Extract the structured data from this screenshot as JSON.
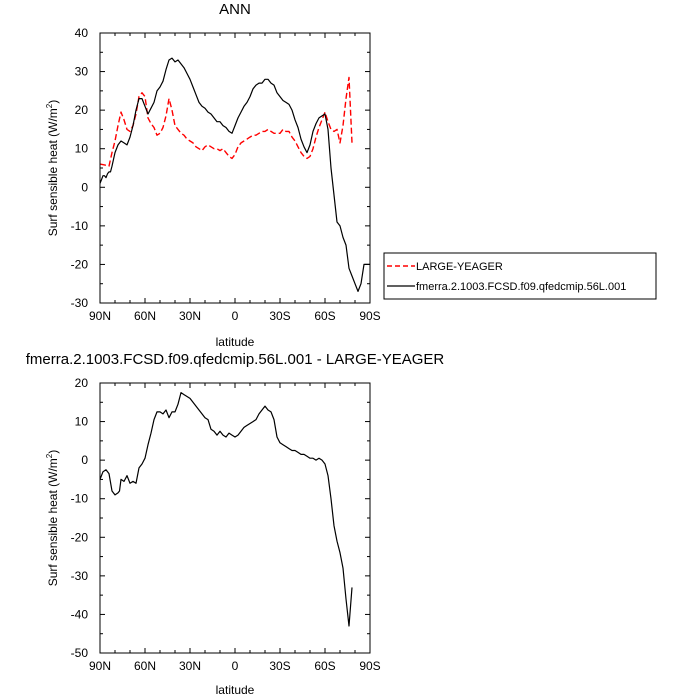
{
  "chart_data": [
    {
      "type": "line",
      "title": "ANN",
      "xlabel": "latitude",
      "ylabel": "Surf sensible heat (W/m²)",
      "ylabel_main": "Surf sensible heat (W/m",
      "ylabel_sup": "2",
      "ylabel_close": ")",
      "xlim": [
        90,
        -90
      ],
      "ylim": [
        -30,
        40
      ],
      "xticks": [
        90,
        60,
        30,
        0,
        -30,
        -60,
        -90
      ],
      "xticklabels": [
        "90N",
        "60N",
        "30N",
        "0",
        "30S",
        "60S",
        "90S"
      ],
      "yticks": [
        -30,
        -20,
        -10,
        0,
        10,
        20,
        30,
        40
      ],
      "yticklabels": [
        "-30",
        "-20",
        "-10",
        "0",
        "10",
        "20",
        "30",
        "40"
      ],
      "legend_position": "right",
      "series": [
        {
          "name": "LARGE-YEAGER",
          "color": "#ff0000",
          "style": "dashed",
          "x": [
            90,
            87,
            84,
            82,
            80,
            78,
            76,
            74,
            72,
            70,
            68,
            66,
            64,
            62,
            60,
            58,
            56,
            54,
            52,
            50,
            48,
            46,
            44,
            42,
            40,
            38,
            36,
            34,
            32,
            30,
            28,
            26,
            24,
            22,
            20,
            18,
            16,
            14,
            12,
            10,
            8,
            6,
            4,
            2,
            0,
            -2,
            -4,
            -6,
            -8,
            -10,
            -12,
            -14,
            -16,
            -18,
            -20,
            -22,
            -24,
            -26,
            -28,
            -30,
            -32,
            -34,
            -36,
            -38,
            -40,
            -42,
            -44,
            -46,
            -48,
            -50,
            -52,
            -54,
            -56,
            -58,
            -60,
            -62,
            -64,
            -66,
            -68,
            -70,
            -72,
            -74,
            -76,
            -78
          ],
          "y": [
            6,
            5.8,
            5.5,
            9,
            12,
            16,
            19.5,
            17.5,
            15,
            14.5,
            16,
            19,
            23.5,
            24.5,
            23.5,
            18,
            16.5,
            15.5,
            13.5,
            14,
            15.5,
            18.5,
            23,
            20,
            16,
            15,
            14,
            13.5,
            12.5,
            12,
            11.5,
            10.5,
            10,
            9.5,
            10.5,
            11,
            10.5,
            10,
            10,
            9.5,
            10,
            9,
            8,
            7.5,
            8.5,
            10.5,
            11.5,
            12,
            12.5,
            13,
            13.5,
            13.5,
            14,
            14.5,
            14.5,
            15,
            14.5,
            14,
            14,
            14,
            15,
            14.5,
            14.5,
            13,
            12,
            10.5,
            9,
            8,
            7.5,
            8,
            10,
            13,
            15.5,
            17.5,
            19.5,
            17,
            15,
            14.5,
            15,
            11.5,
            16,
            23,
            28.5,
            11.5
          ]
        },
        {
          "name": "fmerra.2.1003.FCSD.f09.qfedcmip.56L.001",
          "color": "#000000",
          "style": "solid",
          "x": [
            90,
            89,
            88,
            87,
            86,
            85,
            84,
            83,
            82,
            80,
            78,
            76,
            74,
            72,
            70,
            68,
            66,
            64,
            62,
            60,
            58,
            56,
            54,
            52,
            50,
            48,
            46,
            44,
            42,
            40,
            38,
            36,
            34,
            32,
            30,
            28,
            26,
            24,
            22,
            20,
            18,
            16,
            14,
            12,
            10,
            8,
            6,
            4,
            2,
            0,
            -2,
            -4,
            -6,
            -8,
            -10,
            -12,
            -14,
            -16,
            -18,
            -20,
            -22,
            -24,
            -26,
            -28,
            -30,
            -32,
            -34,
            -36,
            -38,
            -40,
            -42,
            -44,
            -46,
            -48,
            -50,
            -52,
            -54,
            -56,
            -58,
            -60,
            -62,
            -64,
            -66,
            -68,
            -70,
            -72,
            -74,
            -76,
            -78,
            -80,
            -82,
            -84,
            -86,
            -88,
            -90
          ],
          "y": [
            1,
            2,
            3,
            3,
            2.5,
            3.5,
            4,
            4,
            5.5,
            9,
            11,
            12,
            11.5,
            11,
            13,
            16,
            20,
            23,
            23,
            21,
            19,
            20.5,
            22,
            25,
            26,
            27.5,
            30.5,
            33,
            33.5,
            32.5,
            33,
            32,
            31,
            29.5,
            28,
            26,
            24,
            22,
            21,
            20.5,
            19.5,
            19,
            18,
            17,
            17,
            16,
            15.5,
            14.5,
            14,
            16,
            18,
            19.5,
            21,
            22,
            23.5,
            25.5,
            26.5,
            27,
            27,
            28,
            28,
            27,
            26.5,
            24.5,
            23.5,
            22.5,
            22,
            21.5,
            20,
            17.5,
            15.5,
            12.5,
            10.5,
            9,
            11,
            14.5,
            16.5,
            18,
            18.5,
            19,
            15,
            5,
            -2,
            -9,
            -10,
            -13,
            -15,
            -21,
            -23,
            -25,
            -27,
            -25,
            -20,
            -20,
            -20
          ]
        }
      ]
    },
    {
      "type": "line",
      "title": "fmerra.2.1003.FCSD.f09.qfedcmip.56L.001 - LARGE-YEAGER",
      "xlabel": "latitude",
      "ylabel": "Surf sensible heat (W/m²)",
      "ylabel_main": "Surf sensible heat (W/m",
      "ylabel_sup": "2",
      "ylabel_close": ")",
      "xlim": [
        90,
        -90
      ],
      "ylim": [
        -50,
        20
      ],
      "xticks": [
        90,
        60,
        30,
        0,
        -30,
        -60,
        -90
      ],
      "xticklabels": [
        "90N",
        "60N",
        "30N",
        "0",
        "30S",
        "60S",
        "90S"
      ],
      "yticks": [
        -50,
        -40,
        -30,
        -20,
        -10,
        0,
        10,
        20
      ],
      "yticklabels": [
        "-50",
        "-40",
        "-30",
        "-20",
        "-10",
        "0",
        "10",
        "20"
      ],
      "series": [
        {
          "color": "#000000",
          "style": "solid",
          "x": [
            90,
            88,
            86,
            84,
            82,
            80,
            78,
            77,
            76,
            74,
            72,
            70,
            68,
            66,
            64,
            62,
            60,
            58,
            56,
            54,
            52,
            50,
            48,
            46,
            44,
            42,
            40,
            38,
            36,
            34,
            32,
            30,
            28,
            26,
            24,
            22,
            20,
            18,
            16,
            14,
            12,
            10,
            8,
            6,
            4,
            2,
            0,
            -2,
            -4,
            -6,
            -8,
            -10,
            -12,
            -14,
            -16,
            -18,
            -20,
            -22,
            -24,
            -26,
            -28,
            -30,
            -32,
            -34,
            -36,
            -38,
            -40,
            -42,
            -44,
            -46,
            -48,
            -50,
            -52,
            -54,
            -56,
            -58,
            -60,
            -62,
            -64,
            -66,
            -68,
            -70,
            -72,
            -74,
            -76,
            -78
          ],
          "y": [
            -5,
            -3,
            -2.5,
            -3.5,
            -8,
            -9,
            -8.5,
            -8,
            -5,
            -5.5,
            -4,
            -6,
            -5.5,
            -6,
            -2,
            -1,
            0.5,
            4,
            7,
            10.5,
            12.5,
            12.5,
            12,
            13,
            11,
            12.5,
            12.5,
            14.5,
            17.5,
            17,
            16.5,
            16,
            15,
            14,
            13,
            12,
            11,
            10.5,
            8,
            7.5,
            6.5,
            7.5,
            6.5,
            6,
            7,
            6.5,
            6,
            6.5,
            7.5,
            8.5,
            9,
            9.5,
            10,
            10.5,
            12,
            13,
            14,
            13,
            12.5,
            10.5,
            6,
            4.5,
            4,
            3.5,
            3,
            2.5,
            2.5,
            2,
            1.5,
            1.5,
            1,
            0.5,
            0.5,
            0,
            0.5,
            0,
            -1,
            -4,
            -10,
            -17,
            -21,
            -24,
            -28,
            -36,
            -43,
            -33
          ]
        }
      ]
    }
  ]
}
